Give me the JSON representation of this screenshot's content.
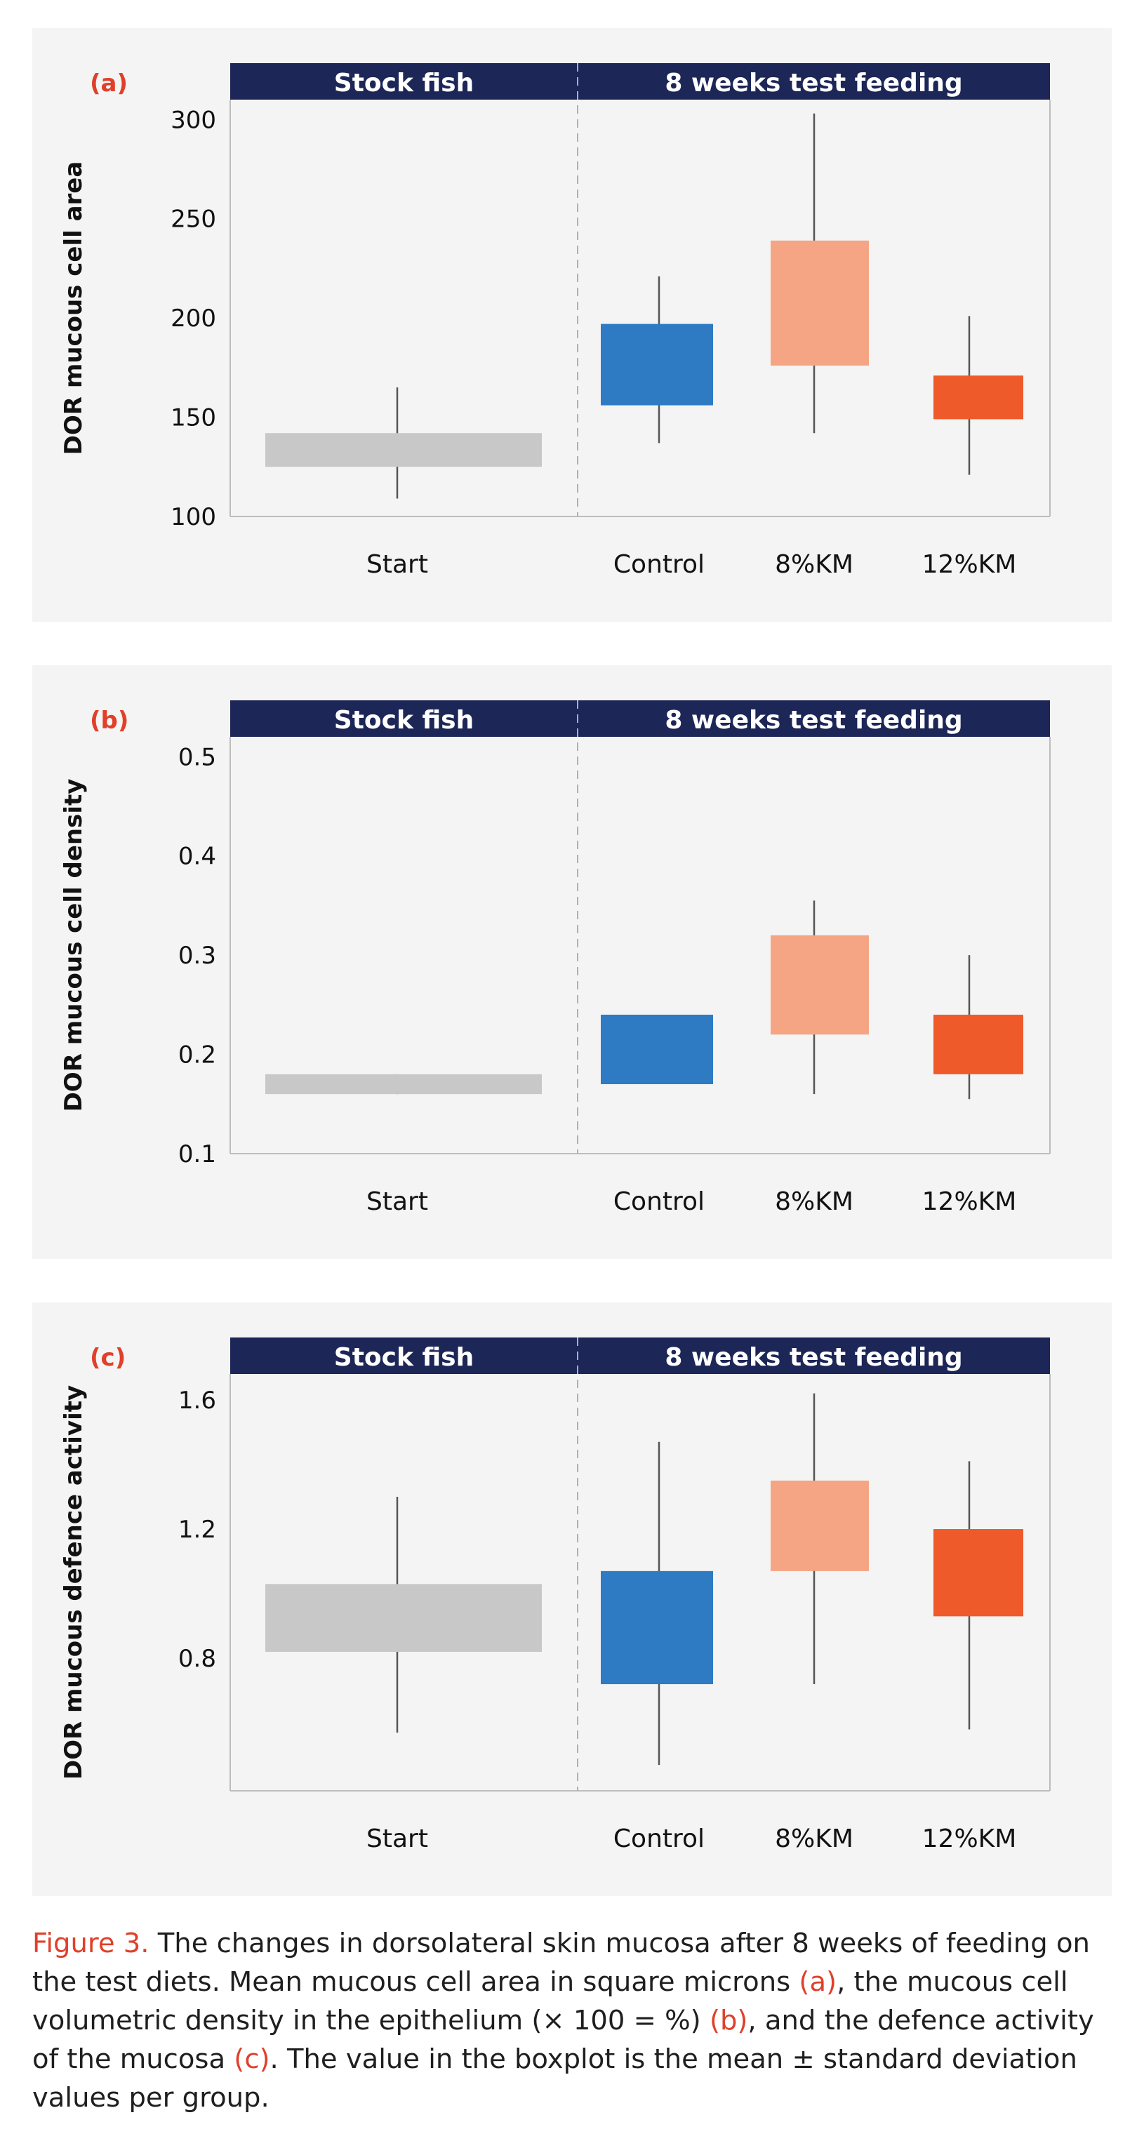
{
  "colors": {
    "header_bg": "#1c2657",
    "header_text": "#ffffff",
    "panel_label": "#e0402a",
    "start": "#c8c8c8",
    "control": "#2e7bc4",
    "km8": "#f5a584",
    "km12": "#ef5a2a",
    "whisker": "#555555",
    "axis": "#bdbdbd",
    "divider": "#b0b0b0"
  },
  "chart_data": [
    {
      "type": "box",
      "panel_label": "(a)",
      "header_left": "Stock fish",
      "header_right": "8 weeks test feeding",
      "ylabel": "DOR mucous cell area",
      "ylim": [
        100,
        310
      ],
      "yticks": [
        100,
        150,
        200,
        250,
        300
      ],
      "ytick_labels": [
        "100",
        "150",
        "200",
        "250",
        "300"
      ],
      "categories": [
        "Start",
        "Control",
        "8%KM",
        "12%KM"
      ],
      "boxes": [
        {
          "low": 125,
          "high": 142,
          "whisker_low": 109,
          "whisker_high": 165
        },
        {
          "low": 156,
          "high": 197,
          "whisker_low": 137,
          "whisker_high": 221
        },
        {
          "low": 176,
          "high": 239,
          "whisker_low": 142,
          "whisker_high": 303
        },
        {
          "low": 149,
          "high": 171,
          "whisker_low": 121,
          "whisker_high": 201
        }
      ]
    },
    {
      "type": "box",
      "panel_label": "(b)",
      "header_left": "Stock fish",
      "header_right": "8 weeks test feeding",
      "ylabel": "DOR mucous cell density",
      "ylim": [
        0.1,
        0.52
      ],
      "yticks": [
        0.1,
        0.2,
        0.3,
        0.4,
        0.5
      ],
      "ytick_labels": [
        "0.1",
        "0.2",
        "0.3",
        "0.4",
        "0.5"
      ],
      "categories": [
        "Start",
        "Control",
        "8%KM",
        "12%KM"
      ],
      "boxes": [
        {
          "low": 0.16,
          "high": 0.18,
          "whisker_low": 0.16,
          "whisker_high": 0.18
        },
        {
          "low": 0.17,
          "high": 0.24,
          "whisker_low": 0.17,
          "whisker_high": 0.24
        },
        {
          "low": 0.22,
          "high": 0.32,
          "whisker_low": 0.16,
          "whisker_high": 0.355
        },
        {
          "low": 0.18,
          "high": 0.24,
          "whisker_low": 0.155,
          "whisker_high": 0.3
        }
      ]
    },
    {
      "type": "box",
      "panel_label": "(c)",
      "header_left": "Stock fish",
      "header_right": "8 weeks test feeding",
      "ylabel": "DOR mucous defence activity",
      "ylim": [
        0.39,
        1.68
      ],
      "yticks": [
        0.8,
        1.2,
        1.6
      ],
      "ytick_labels": [
        "0.8",
        "1.2",
        "1.6"
      ],
      "categories": [
        "Start",
        "Control",
        "8%KM",
        "12%KM"
      ],
      "boxes": [
        {
          "low": 0.82,
          "high": 1.03,
          "whisker_low": 0.57,
          "whisker_high": 1.3
        },
        {
          "low": 0.72,
          "high": 1.07,
          "whisker_low": 0.47,
          "whisker_high": 1.47
        },
        {
          "low": 1.07,
          "high": 1.35,
          "whisker_low": 0.72,
          "whisker_high": 1.62
        },
        {
          "low": 0.93,
          "high": 1.2,
          "whisker_low": 0.58,
          "whisker_high": 1.41
        }
      ]
    }
  ],
  "caption": {
    "fig_label": "Figure 3.",
    "part1": " The changes in dorsolateral skin mucosa after 8 weeks of feeding on the test diets. Mean mucous cell area in square microns ",
    "ref_a": "(a)",
    "part2": ", the mucous cell volumetric density in the epithelium (× 100 = %) ",
    "ref_b": "(b)",
    "part3": ", and the defence activity of the mucosa ",
    "ref_c": "(c)",
    "part4": ". The value in the boxplot is the mean ± standard deviation values per group."
  }
}
